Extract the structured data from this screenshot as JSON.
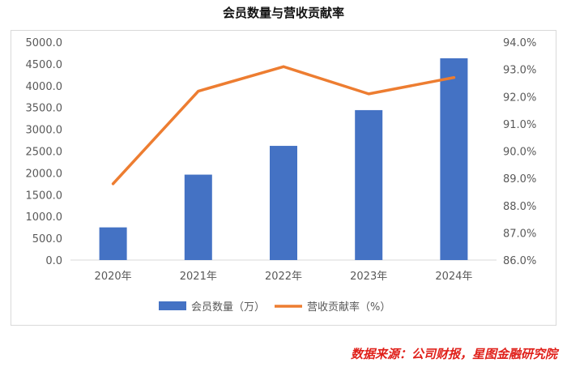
{
  "chart_data": {
    "type": "bar",
    "title": "会员数量与营收贡献率",
    "categories": [
      "2020年",
      "2021年",
      "2022年",
      "2023年",
      "2024年"
    ],
    "series": [
      {
        "name": "会员数量（万）",
        "type": "bar",
        "axis": "left",
        "color": "#4472c4",
        "values": [
          750,
          1960,
          2620,
          3440,
          4630
        ]
      },
      {
        "name": "营收贡献率（%）",
        "type": "line",
        "axis": "right",
        "color": "#ed7d31",
        "values": [
          88.8,
          92.2,
          93.1,
          92.1,
          92.7
        ]
      }
    ],
    "y_left": {
      "lim": [
        0,
        5000
      ],
      "ticks": [
        "0.0",
        "500.0",
        "1000.0",
        "1500.0",
        "2000.0",
        "2500.0",
        "3000.0",
        "3500.0",
        "4000.0",
        "4500.0",
        "5000.0"
      ]
    },
    "y_right": {
      "lim": [
        86,
        94
      ],
      "ticks": [
        "86.0%",
        "87.0%",
        "88.0%",
        "89.0%",
        "90.0%",
        "91.0%",
        "92.0%",
        "93.0%",
        "94.0%"
      ]
    },
    "grid": false,
    "legend": "bottom"
  },
  "source": "数据来源：公司财报，星图金融研究院"
}
